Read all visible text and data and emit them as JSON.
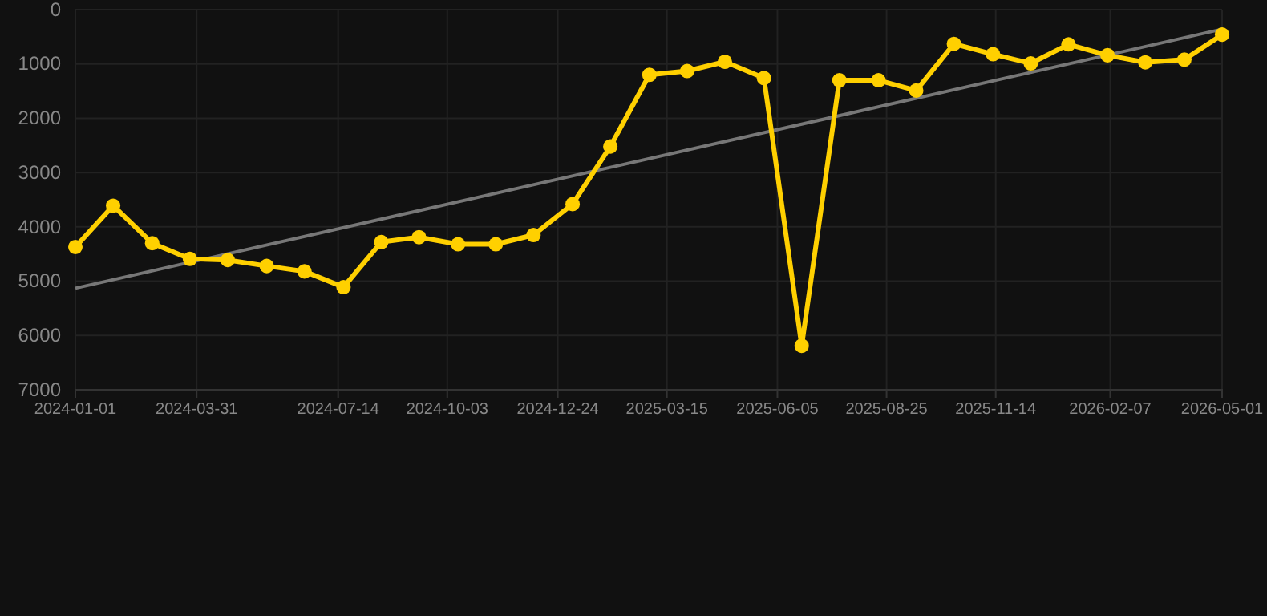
{
  "chart_data": {
    "type": "line",
    "x": [
      "2024-01-01",
      "2024-01-29",
      "2024-02-27",
      "2024-03-26",
      "2024-04-23",
      "2024-05-22",
      "2024-06-19",
      "2024-07-18",
      "2024-08-15",
      "2024-09-12",
      "2024-10-11",
      "2024-11-08",
      "2024-12-06",
      "2025-01-04",
      "2025-02-01",
      "2025-03-02",
      "2025-03-30",
      "2025-04-27",
      "2025-05-26",
      "2025-06-23",
      "2025-07-21",
      "2025-08-19",
      "2025-09-16",
      "2025-10-14",
      "2025-11-12",
      "2025-12-10",
      "2026-01-07",
      "2026-02-05",
      "2026-03-05",
      "2026-04-03",
      "2026-05-01"
    ],
    "series": [
      {
        "color": "#ffd000",
        "marker": "circle",
        "values": [
          4370,
          3610,
          4300,
          4590,
          4610,
          4720,
          4820,
          5110,
          4280,
          4190,
          4320,
          4320,
          4150,
          3580,
          2520,
          1200,
          1130,
          960,
          1260,
          6190,
          1300,
          1300,
          1490,
          630,
          820,
          990,
          640,
          840,
          970,
          920,
          460
        ]
      },
      {
        "type": "line",
        "color": "#777777",
        "marker": "none",
        "x": [
          "2024-01-01",
          "2026-05-01"
        ],
        "values": [
          5130,
          360
        ]
      }
    ],
    "ylim": [
      7000,
      0
    ],
    "yticks": [
      0,
      1000,
      2000,
      3000,
      4000,
      5000,
      6000,
      7000
    ],
    "xlim": [
      "2024-01-01",
      "2026-05-01"
    ],
    "xticks": [
      {
        "value": "2024-01-01",
        "label": "2024-01-01"
      },
      {
        "value": "2024-03-31",
        "label": "2024-03-31"
      },
      {
        "value": "2024-07-14",
        "label": "2024-07-14"
      },
      {
        "value": "2024-10-03",
        "label": "2024-10-03"
      },
      {
        "value": "2024-12-24",
        "label": "2024-12-24"
      },
      {
        "value": "2025-03-15",
        "label": "2025-03-15"
      },
      {
        "value": "2025-06-05",
        "label": "2025-06-05"
      },
      {
        "value": "2025-08-25",
        "label": "2025-08-25"
      },
      {
        "value": "2025-11-14",
        "label": "2025-11-14"
      },
      {
        "value": "2026-02-07",
        "label": "2026-02-07"
      },
      {
        "value": "2026-05-01",
        "label": "2026-05-01"
      }
    ],
    "grid": true,
    "line_style": "solid"
  }
}
